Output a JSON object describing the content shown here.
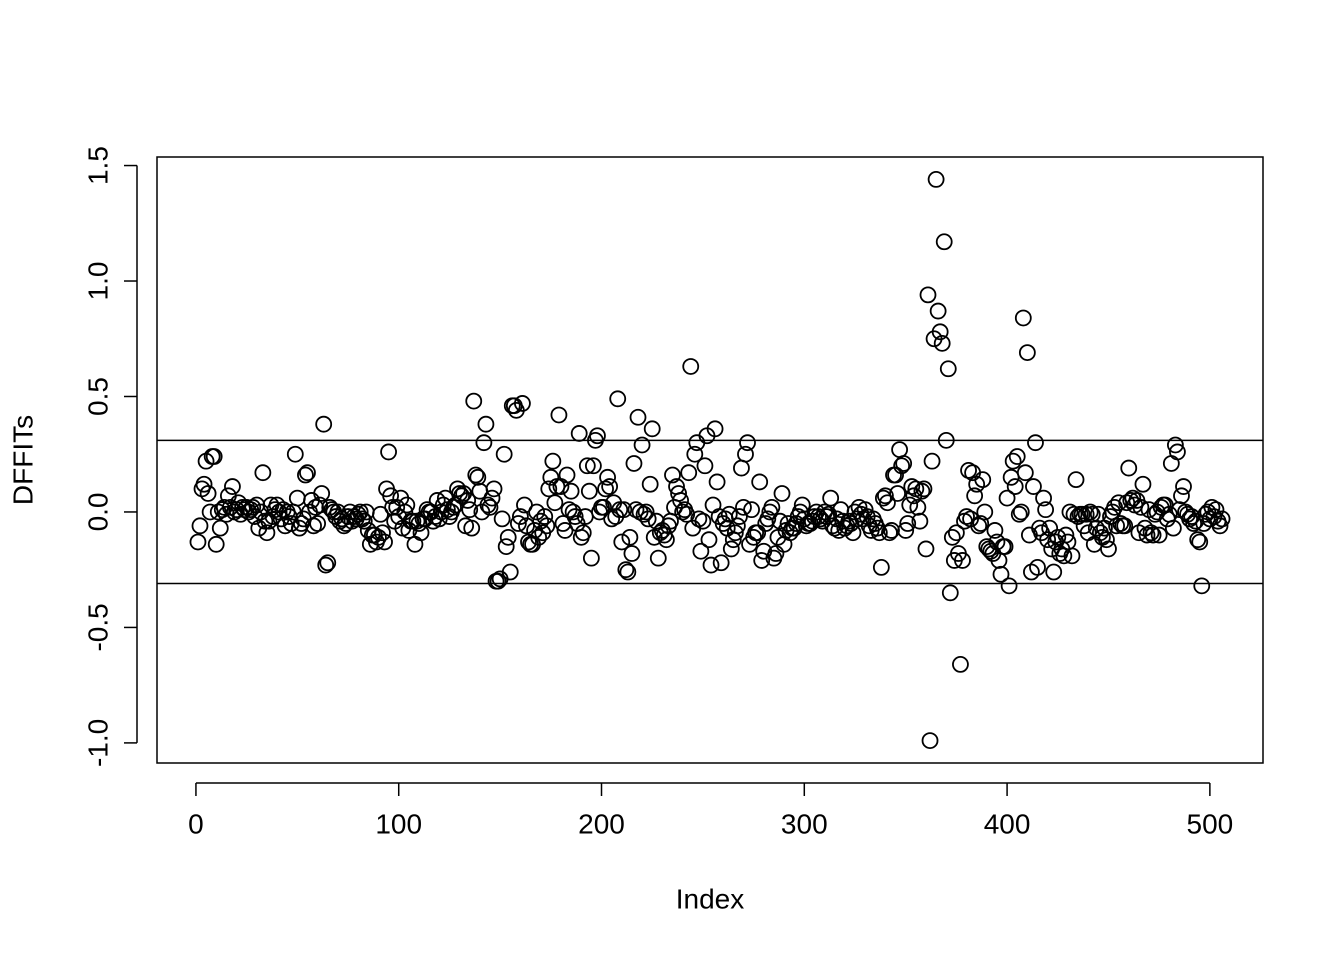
{
  "chart_data": {
    "type": "scatter",
    "x_label": "Index",
    "y_label": "DFFITs",
    "xlim": [
      -19.2,
      526.2
    ],
    "ylim": [
      -1.087,
      1.537
    ],
    "xticks": [
      0,
      100,
      200,
      300,
      400,
      500
    ],
    "yticks": [
      {
        "value": -1.0,
        "label": "-1.0"
      },
      {
        "value": -0.5,
        "label": "-0.5"
      },
      {
        "value": 0.0,
        "label": "0.0"
      },
      {
        "value": 0.5,
        "label": "0.5"
      },
      {
        "value": 1.0,
        "label": "1.0"
      },
      {
        "value": 1.5,
        "label": "1.5"
      }
    ],
    "hlines": [
      0.31,
      -0.31
    ],
    "color": "#000000",
    "x": [
      1,
      2,
      3,
      4,
      5,
      6,
      7,
      8,
      9,
      10,
      11,
      12,
      13,
      14,
      15,
      16,
      17,
      18,
      19,
      20,
      21,
      22,
      23,
      24,
      25,
      26,
      27,
      28,
      29,
      30,
      31,
      32,
      33,
      34,
      35,
      36,
      37,
      38,
      39,
      40,
      41,
      42,
      43,
      44,
      45,
      46,
      47,
      48,
      49,
      50,
      51,
      52,
      53,
      54,
      55,
      56,
      57,
      58,
      59,
      60,
      61,
      62,
      63,
      64,
      65,
      66,
      67,
      68,
      69,
      70,
      71,
      72,
      73,
      74,
      75,
      76,
      77,
      78,
      79,
      80,
      81,
      82,
      83,
      84,
      85,
      86,
      87,
      88,
      89,
      90,
      91,
      92,
      93,
      94,
      95,
      96,
      97,
      98,
      99,
      100,
      101,
      102,
      103,
      104,
      105,
      106,
      107,
      108,
      109,
      110,
      111,
      112,
      113,
      114,
      115,
      116,
      117,
      118,
      119,
      120,
      121,
      122,
      123,
      124,
      125,
      126,
      127,
      128,
      129,
      130,
      131,
      132,
      133,
      134,
      135,
      136,
      137,
      138,
      139,
      140,
      141,
      142,
      143,
      144,
      145,
      146,
      147,
      148,
      149,
      150,
      151,
      152,
      153,
      154,
      155,
      156,
      157,
      158,
      159,
      160,
      161,
      162,
      163,
      164,
      165,
      166,
      167,
      168,
      169,
      170,
      171,
      172,
      173,
      174,
      175,
      176,
      177,
      178,
      179,
      180,
      181,
      182,
      183,
      184,
      185,
      186,
      187,
      188,
      189,
      190,
      191,
      192,
      193,
      194,
      195,
      196,
      197,
      198,
      199,
      200,
      201,
      202,
      203,
      204,
      205,
      206,
      207,
      208,
      209,
      210,
      211,
      212,
      213,
      214,
      215,
      216,
      217,
      218,
      219,
      220,
      221,
      222,
      223,
      224,
      225,
      226,
      227,
      228,
      229,
      230,
      231,
      232,
      233,
      234,
      235,
      236,
      237,
      238,
      239,
      240,
      241,
      242,
      243,
      244,
      245,
      246,
      247,
      248,
      249,
      250,
      251,
      252,
      253,
      254,
      255,
      256,
      257,
      258,
      259,
      260,
      261,
      262,
      263,
      264,
      265,
      266,
      267,
      268,
      269,
      270,
      271,
      272,
      273,
      274,
      275,
      276,
      277,
      278,
      279,
      280,
      281,
      282,
      283,
      284,
      285,
      286,
      287,
      288,
      289,
      290,
      291,
      292,
      293,
      294,
      295,
      296,
      297,
      298,
      299,
      300,
      301,
      302,
      303,
      304,
      305,
      306,
      307,
      308,
      309,
      310,
      311,
      312,
      313,
      314,
      315,
      316,
      317,
      318,
      319,
      320,
      321,
      322,
      323,
      324,
      325,
      326,
      327,
      328,
      329,
      330,
      331,
      332,
      333,
      334,
      335,
      336,
      337,
      338,
      339,
      340,
      341,
      342,
      343,
      344,
      345,
      346,
      347,
      348,
      349,
      350,
      351,
      352,
      353,
      354,
      355,
      356,
      357,
      358,
      359,
      360,
      361,
      362,
      363,
      364,
      365,
      366,
      367,
      368,
      369,
      370,
      371,
      372,
      373,
      374,
      375,
      376,
      377,
      378,
      379,
      380,
      381,
      382,
      383,
      384,
      385,
      386,
      387,
      388,
      389,
      390,
      391,
      392,
      393,
      394,
      395,
      396,
      397,
      398,
      399,
      400,
      401,
      402,
      403,
      404,
      405,
      406,
      407,
      408,
      409,
      410,
      411,
      412,
      413,
      414,
      415,
      416,
      417,
      418,
      419,
      420,
      421,
      422,
      423,
      424,
      425,
      426,
      427,
      428,
      429,
      430,
      431,
      432,
      433,
      434,
      435,
      436,
      437,
      438,
      439,
      440,
      441,
      442,
      443,
      444,
      445,
      446,
      447,
      448,
      449,
      450,
      451,
      452,
      453,
      454,
      455,
      456,
      457,
      458,
      459,
      460,
      461,
      462,
      463,
      464,
      465,
      466,
      467,
      468,
      469,
      470,
      471,
      472,
      473,
      474,
      475,
      476,
      477,
      478,
      479,
      480,
      481,
      482,
      483,
      484,
      485,
      486,
      487,
      488,
      489,
      490,
      491,
      492,
      493,
      494,
      495,
      496,
      497,
      498,
      499,
      500,
      501,
      502,
      503,
      504,
      505,
      506
    ],
    "values": [
      -0.13,
      -0.06,
      0.1,
      0.12,
      0.22,
      0.08,
      0.0,
      0.24,
      0.24,
      -0.14,
      0.0,
      -0.07,
      0.01,
      0.02,
      -0.01,
      0.07,
      0.02,
      0.11,
      0.0,
      0.01,
      0.04,
      -0.01,
      0.02,
      0.01,
      0.02,
      0.0,
      0.01,
      0.02,
      -0.02,
      0.03,
      -0.07,
      0.0,
      0.17,
      -0.04,
      -0.09,
      -0.04,
      0.03,
      -0.02,
      0.01,
      0.03,
      0.0,
      -0.03,
      0.01,
      -0.06,
      0.0,
      -0.02,
      -0.05,
      0.0,
      0.25,
      0.06,
      -0.07,
      -0.05,
      -0.03,
      0.16,
      0.17,
      0.0,
      0.05,
      -0.06,
      0.02,
      -0.05,
      0.03,
      0.08,
      0.38,
      -0.23,
      -0.22,
      0.02,
      0.01,
      0.0,
      -0.02,
      0.0,
      -0.04,
      -0.03,
      -0.06,
      -0.05,
      -0.02,
      0.0,
      -0.04,
      -0.02,
      -0.03,
      -0.01,
      0.0,
      -0.03,
      -0.04,
      0.0,
      -0.08,
      -0.14,
      -0.1,
      -0.1,
      -0.13,
      -0.11,
      -0.01,
      -0.09,
      -0.13,
      0.1,
      0.26,
      0.07,
      0.02,
      -0.04,
      0.02,
      -0.02,
      0.06,
      -0.07,
      0.0,
      0.03,
      -0.08,
      -0.04,
      -0.04,
      -0.14,
      -0.04,
      -0.05,
      -0.09,
      -0.03,
      -0.03,
      0.01,
      0.0,
      0.0,
      -0.04,
      -0.02,
      0.05,
      -0.03,
      0.0,
      0.03,
      0.06,
      0.01,
      -0.02,
      0.0,
      0.02,
      0.03,
      0.1,
      0.08,
      0.07,
      0.08,
      -0.06,
      0.05,
      0.01,
      -0.07,
      0.48,
      0.16,
      0.15,
      0.09,
      0.0,
      0.3,
      0.38,
      0.03,
      0.02,
      0.06,
      0.1,
      -0.3,
      -0.3,
      -0.29,
      -0.03,
      0.25,
      -0.15,
      -0.11,
      -0.26,
      0.46,
      0.46,
      0.44,
      -0.05,
      -0.02,
      0.47,
      0.03,
      -0.06,
      -0.13,
      -0.14,
      -0.14,
      -0.08,
      0.0,
      -0.11,
      -0.04,
      -0.09,
      -0.02,
      -0.06,
      0.1,
      0.15,
      0.22,
      0.04,
      0.11,
      0.42,
      0.11,
      -0.05,
      -0.08,
      0.16,
      0.01,
      0.09,
      0.0,
      -0.02,
      -0.05,
      0.34,
      -0.11,
      -0.09,
      -0.02,
      0.2,
      0.09,
      -0.2,
      0.2,
      0.31,
      0.33,
      0.0,
      0.02,
      0.02,
      0.1,
      0.15,
      0.11,
      -0.03,
      0.04,
      -0.02,
      0.49,
      0.01,
      -0.13,
      0.01,
      -0.25,
      -0.26,
      -0.11,
      -0.18,
      0.21,
      0.01,
      0.41,
      0.0,
      0.29,
      -0.01,
      0.0,
      -0.03,
      0.12,
      0.36,
      -0.11,
      -0.04,
      -0.2,
      -0.09,
      -0.08,
      -0.1,
      -0.12,
      -0.06,
      -0.04,
      0.16,
      0.02,
      0.11,
      0.08,
      0.05,
      0.0,
      0.01,
      -0.01,
      0.17,
      0.63,
      -0.07,
      0.25,
      0.3,
      -0.03,
      -0.17,
      -0.04,
      0.2,
      0.33,
      -0.12,
      -0.23,
      0.03,
      0.36,
      0.13,
      -0.02,
      -0.22,
      -0.05,
      -0.03,
      -0.07,
      -0.01,
      -0.16,
      -0.12,
      -0.09,
      -0.06,
      -0.02,
      0.19,
      0.02,
      0.25,
      0.3,
      -0.14,
      0.01,
      -0.11,
      -0.09,
      -0.09,
      0.13,
      -0.21,
      -0.17,
      -0.05,
      -0.03,
      0.0,
      0.02,
      -0.2,
      -0.18,
      -0.11,
      -0.04,
      0.08,
      -0.14,
      -0.08,
      -0.05,
      -0.09,
      -0.07,
      -0.07,
      -0.05,
      -0.02,
      0.0,
      0.03,
      -0.03,
      -0.06,
      -0.05,
      -0.05,
      -0.04,
      -0.02,
      0.0,
      -0.02,
      -0.03,
      -0.04,
      0.0,
      -0.02,
      -0.01,
      0.06,
      -0.06,
      -0.07,
      -0.03,
      -0.08,
      0.01,
      -0.04,
      -0.07,
      -0.06,
      -0.04,
      -0.05,
      -0.09,
      0.0,
      -0.03,
      0.02,
      -0.01,
      -0.03,
      0.01,
      -0.02,
      -0.06,
      -0.08,
      -0.03,
      -0.05,
      -0.07,
      -0.09,
      -0.24,
      0.06,
      0.07,
      0.04,
      -0.09,
      -0.08,
      0.16,
      0.16,
      0.08,
      0.27,
      0.2,
      0.21,
      -0.08,
      -0.05,
      0.03,
      0.11,
      0.07,
      0.1,
      0.02,
      -0.04,
      0.09,
      0.1,
      -0.16,
      0.94,
      -0.99,
      0.22,
      0.75,
      1.44,
      0.87,
      0.78,
      0.73,
      1.17,
      0.31,
      0.62,
      -0.35,
      -0.11,
      -0.21,
      -0.09,
      -0.18,
      -0.66,
      -0.21,
      -0.04,
      -0.02,
      0.18,
      -0.03,
      0.17,
      0.07,
      0.12,
      -0.06,
      -0.05,
      0.14,
      0.0,
      -0.15,
      -0.16,
      -0.17,
      -0.18,
      -0.08,
      -0.13,
      -0.21,
      -0.27,
      -0.15,
      -0.15,
      0.06,
      -0.32,
      0.15,
      0.22,
      0.11,
      0.24,
      -0.01,
      0.0,
      0.84,
      0.17,
      0.69,
      -0.1,
      -0.26,
      0.11,
      0.3,
      -0.24,
      -0.07,
      -0.09,
      0.06,
      0.01,
      -0.12,
      -0.07,
      -0.16,
      -0.26,
      -0.13,
      -0.11,
      -0.18,
      -0.16,
      -0.19,
      -0.1,
      -0.13,
      0.0,
      -0.19,
      -0.01,
      0.14,
      -0.02,
      -0.01,
      -0.01,
      -0.06,
      -0.01,
      -0.09,
      0.0,
      -0.01,
      -0.14,
      -0.07,
      -0.01,
      -0.09,
      -0.11,
      -0.07,
      -0.12,
      -0.16,
      -0.02,
      0.0,
      0.02,
      -0.06,
      0.04,
      -0.05,
      -0.06,
      -0.06,
      0.04,
      0.19,
      0.05,
      0.06,
      0.03,
      0.05,
      -0.09,
      0.02,
      0.12,
      -0.07,
      -0.1,
      0.01,
      -0.09,
      -0.1,
      -0.01,
      0.0,
      -0.1,
      0.02,
      0.03,
      0.03,
      -0.03,
      -0.01,
      0.21,
      -0.07,
      0.29,
      0.26,
      0.01,
      0.07,
      0.11,
      0.0,
      -0.01,
      -0.03,
      -0.02,
      -0.05,
      -0.04,
      -0.12,
      -0.13,
      -0.32,
      -0.05,
      -0.01,
      0.0,
      -0.03,
      0.02,
      -0.02,
      0.01,
      -0.04,
      -0.06,
      -0.03
    ]
  }
}
